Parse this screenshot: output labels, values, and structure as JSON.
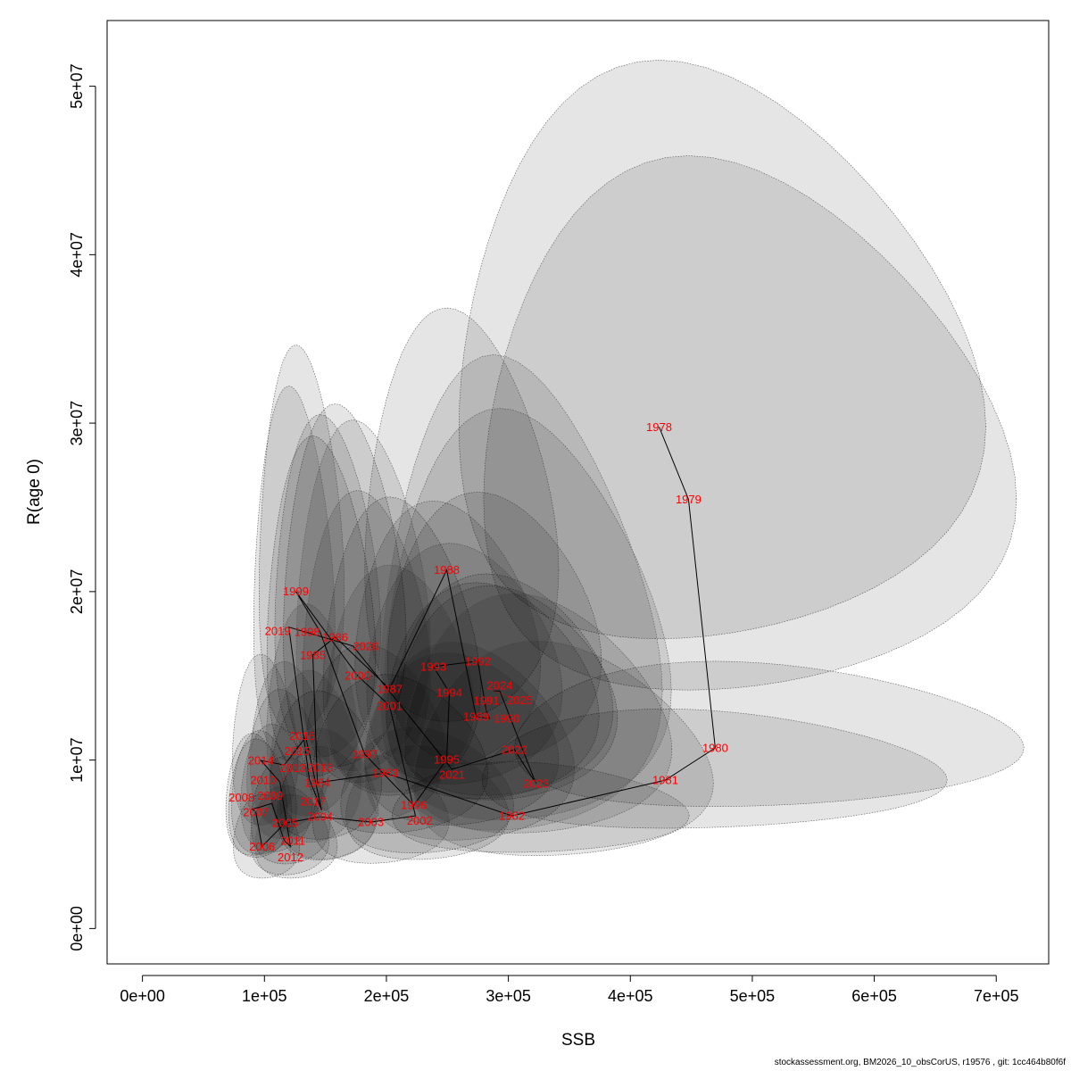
{
  "chart_data": {
    "type": "scatter",
    "xlabel": "SSB",
    "ylabel": "R(age 0)",
    "xlim": [
      -29000,
      743000
    ],
    "ylim": [
      -2100000,
      53900000
    ],
    "x_ticks": [
      "0e+00",
      "1e+05",
      "2e+05",
      "3e+05",
      "4e+05",
      "5e+05",
      "6e+05",
      "7e+05"
    ],
    "x_tick_values": [
      0,
      100000,
      200000,
      300000,
      400000,
      500000,
      600000,
      700000
    ],
    "y_ticks": [
      "0e+00",
      "1e+07",
      "2e+07",
      "3e+07",
      "4e+07",
      "5e+07"
    ],
    "y_tick_values": [
      0,
      10000000,
      20000000,
      30000000,
      40000000,
      50000000
    ],
    "grid": false,
    "colors": {
      "labels": "#ff0000",
      "line": "#000000",
      "ellipse_fill": "rgba(0,0,0,0.1)",
      "ellipse_stroke": "#555555"
    },
    "points": [
      {
        "year": "1978",
        "ssb": 423600,
        "r": 29780000,
        "sd_log_ssb": 0.25,
        "sd_log_r": 0.28
      },
      {
        "year": "1979",
        "ssb": 447700,
        "r": 25480000,
        "sd_log_ssb": 0.24,
        "sd_log_r": 0.3
      },
      {
        "year": "1980",
        "ssb": 469600,
        "r": 10720000,
        "sd_log_ssb": 0.22,
        "sd_log_r": 0.2
      },
      {
        "year": "1981",
        "ssb": 428700,
        "r": 8810000,
        "sd_log_ssb": 0.22,
        "sd_log_r": 0.2
      },
      {
        "year": "1982",
        "ssb": 302900,
        "r": 6690000,
        "sd_log_ssb": 0.2,
        "sd_log_r": 0.2
      },
      {
        "year": "1983",
        "ssb": 199000,
        "r": 9240000,
        "sd_log_ssb": 0.18,
        "sd_log_r": 0.25
      },
      {
        "year": "1984",
        "ssb": 143400,
        "r": 8650000,
        "sd_log_ssb": 0.16,
        "sd_log_r": 0.25
      },
      {
        "year": "1985",
        "ssb": 139700,
        "r": 16240000,
        "sd_log_ssb": 0.16,
        "sd_log_r": 0.3
      },
      {
        "year": "1986",
        "ssb": 158000,
        "r": 17300000,
        "sd_log_ssb": 0.16,
        "sd_log_r": 0.3
      },
      {
        "year": "1987",
        "ssb": 202600,
        "r": 14230000,
        "sd_log_ssb": 0.16,
        "sd_log_r": 0.3
      },
      {
        "year": "1988",
        "ssb": 249400,
        "r": 21280000,
        "sd_log_ssb": 0.16,
        "sd_log_r": 0.28
      },
      {
        "year": "1989",
        "ssb": 273600,
        "r": 12580000,
        "sd_log_ssb": 0.16,
        "sd_log_r": 0.25
      },
      {
        "year": "1990",
        "ssb": 284600,
        "r": 12470000,
        "sd_log_ssb": 0.16,
        "sd_log_r": 0.25
      },
      {
        "year": "1991",
        "ssb": 282000,
        "r": 12900000,
        "sd_log_ssb": 0.16,
        "sd_log_r": 0.25
      },
      {
        "year": "1992",
        "ssb": 275000,
        "r": 15870000,
        "sd_log_ssb": 0.16,
        "sd_log_r": 0.25
      },
      {
        "year": "1993",
        "ssb": 238500,
        "r": 15550000,
        "sd_log_ssb": 0.16,
        "sd_log_r": 0.25
      },
      {
        "year": "1994",
        "ssb": 251600,
        "r": 14010000,
        "sd_log_ssb": 0.16,
        "sd_log_r": 0.25
      },
      {
        "year": "1995",
        "ssb": 249400,
        "r": 10030000,
        "sd_log_ssb": 0.16,
        "sd_log_r": 0.25
      },
      {
        "year": "1996",
        "ssb": 222400,
        "r": 7320000,
        "sd_log_ssb": 0.16,
        "sd_log_r": 0.25
      },
      {
        "year": "1997",
        "ssb": 182200,
        "r": 10350000,
        "sd_log_ssb": 0.16,
        "sd_log_r": 0.25
      },
      {
        "year": "1998",
        "ssb": 145600,
        "r": 17620000,
        "sd_log_ssb": 0.15,
        "sd_log_r": 0.28
      },
      {
        "year": "1999",
        "ssb": 125800,
        "r": 20010000,
        "sd_log_ssb": 0.14,
        "sd_log_r": 0.28
      },
      {
        "year": "2000",
        "ssb": 176300,
        "r": 15020000,
        "sd_log_ssb": 0.15,
        "sd_log_r": 0.28
      },
      {
        "year": "2001",
        "ssb": 202600,
        "r": 13220000,
        "sd_log_ssb": 0.15,
        "sd_log_r": 0.25
      },
      {
        "year": "2002",
        "ssb": 223800,
        "r": 6690000,
        "sd_log_ssb": 0.15,
        "sd_log_r": 0.25
      },
      {
        "year": "2003",
        "ssb": 187300,
        "r": 6320000,
        "sd_log_ssb": 0.15,
        "sd_log_r": 0.25
      },
      {
        "year": "2004",
        "ssb": 145600,
        "r": 6630000,
        "sd_log_ssb": 0.14,
        "sd_log_r": 0.25
      },
      {
        "year": "2005",
        "ssb": 117000,
        "r": 6260000,
        "sd_log_ssb": 0.14,
        "sd_log_r": 0.25
      },
      {
        "year": "2006",
        "ssb": 98000,
        "r": 4880000,
        "sd_log_ssb": 0.14,
        "sd_log_r": 0.25
      },
      {
        "year": "2007",
        "ssb": 93000,
        "r": 6900000,
        "sd_log_ssb": 0.14,
        "sd_log_r": 0.25
      },
      {
        "year": "2008",
        "ssb": 90000,
        "r": 7100000,
        "sd_log_ssb": 0.14,
        "sd_log_r": 0.25
      },
      {
        "year": "2009",
        "ssb": 96000,
        "r": 7200000,
        "sd_log_ssb": 0.14,
        "sd_log_r": 0.25
      },
      {
        "year": "2010",
        "ssb": 106000,
        "r": 7430000,
        "sd_log_ssb": 0.14,
        "sd_log_r": 0.25
      },
      {
        "year": "2011",
        "ssb": 116300,
        "r": 5200000,
        "sd_log_ssb": 0.14,
        "sd_log_r": 0.25
      },
      {
        "year": "2012",
        "ssb": 121400,
        "r": 4880000,
        "sd_log_ssb": 0.14,
        "sd_log_r": 0.25
      },
      {
        "year": "2013",
        "ssb": 112700,
        "r": 8700000,
        "sd_log_ssb": 0.14,
        "sd_log_r": 0.25
      },
      {
        "year": "2014",
        "ssb": 97000,
        "r": 9980000,
        "sd_log_ssb": 0.14,
        "sd_log_r": 0.25
      },
      {
        "year": "2015",
        "ssb": 116300,
        "r": 9710000,
        "sd_log_ssb": 0.14,
        "sd_log_r": 0.25
      },
      {
        "year": "2016",
        "ssb": 133900,
        "r": 11360000,
        "sd_log_ssb": 0.14,
        "sd_log_r": 0.27
      },
      {
        "year": "2017",
        "ssb": 147000,
        "r": 7000000,
        "sd_log_ssb": 0.14,
        "sd_log_r": 0.27
      },
      {
        "year": "2018",
        "ssb": 136800,
        "r": 8860000,
        "sd_log_ssb": 0.14,
        "sd_log_r": 0.28
      },
      {
        "year": "2019",
        "ssb": 120000,
        "r": 17890000,
        "sd_log_ssb": 0.14,
        "sd_log_r": 0.3
      },
      {
        "year": "2020",
        "ssb": 172600,
        "r": 16770000,
        "sd_log_ssb": 0.16,
        "sd_log_r": 0.3
      },
      {
        "year": "2021",
        "ssb": 253800,
        "r": 9450000,
        "sd_log_ssb": 0.17,
        "sd_log_r": 0.3
      },
      {
        "year": "2022",
        "ssb": 305000,
        "r": 10620000,
        "sd_log_ssb": 0.18,
        "sd_log_r": 0.32
      },
      {
        "year": "2023",
        "ssb": 322600,
        "r": 8600000,
        "sd_log_ssb": 0.19,
        "sd_log_r": 0.35
      },
      {
        "year": "2024",
        "ssb": 293000,
        "r": 14100000,
        "sd_log_ssb": 0.2,
        "sd_log_r": 0.4
      },
      {
        "year": "2025",
        "ssb": 288000,
        "r": 14100000,
        "sd_log_ssb": 0.2,
        "sd_log_r": 0.45
      }
    ]
  },
  "footer": "stockassessment.org, BM2026_10_obsCorUS, r19576 , git: 1cc464b80f6f"
}
